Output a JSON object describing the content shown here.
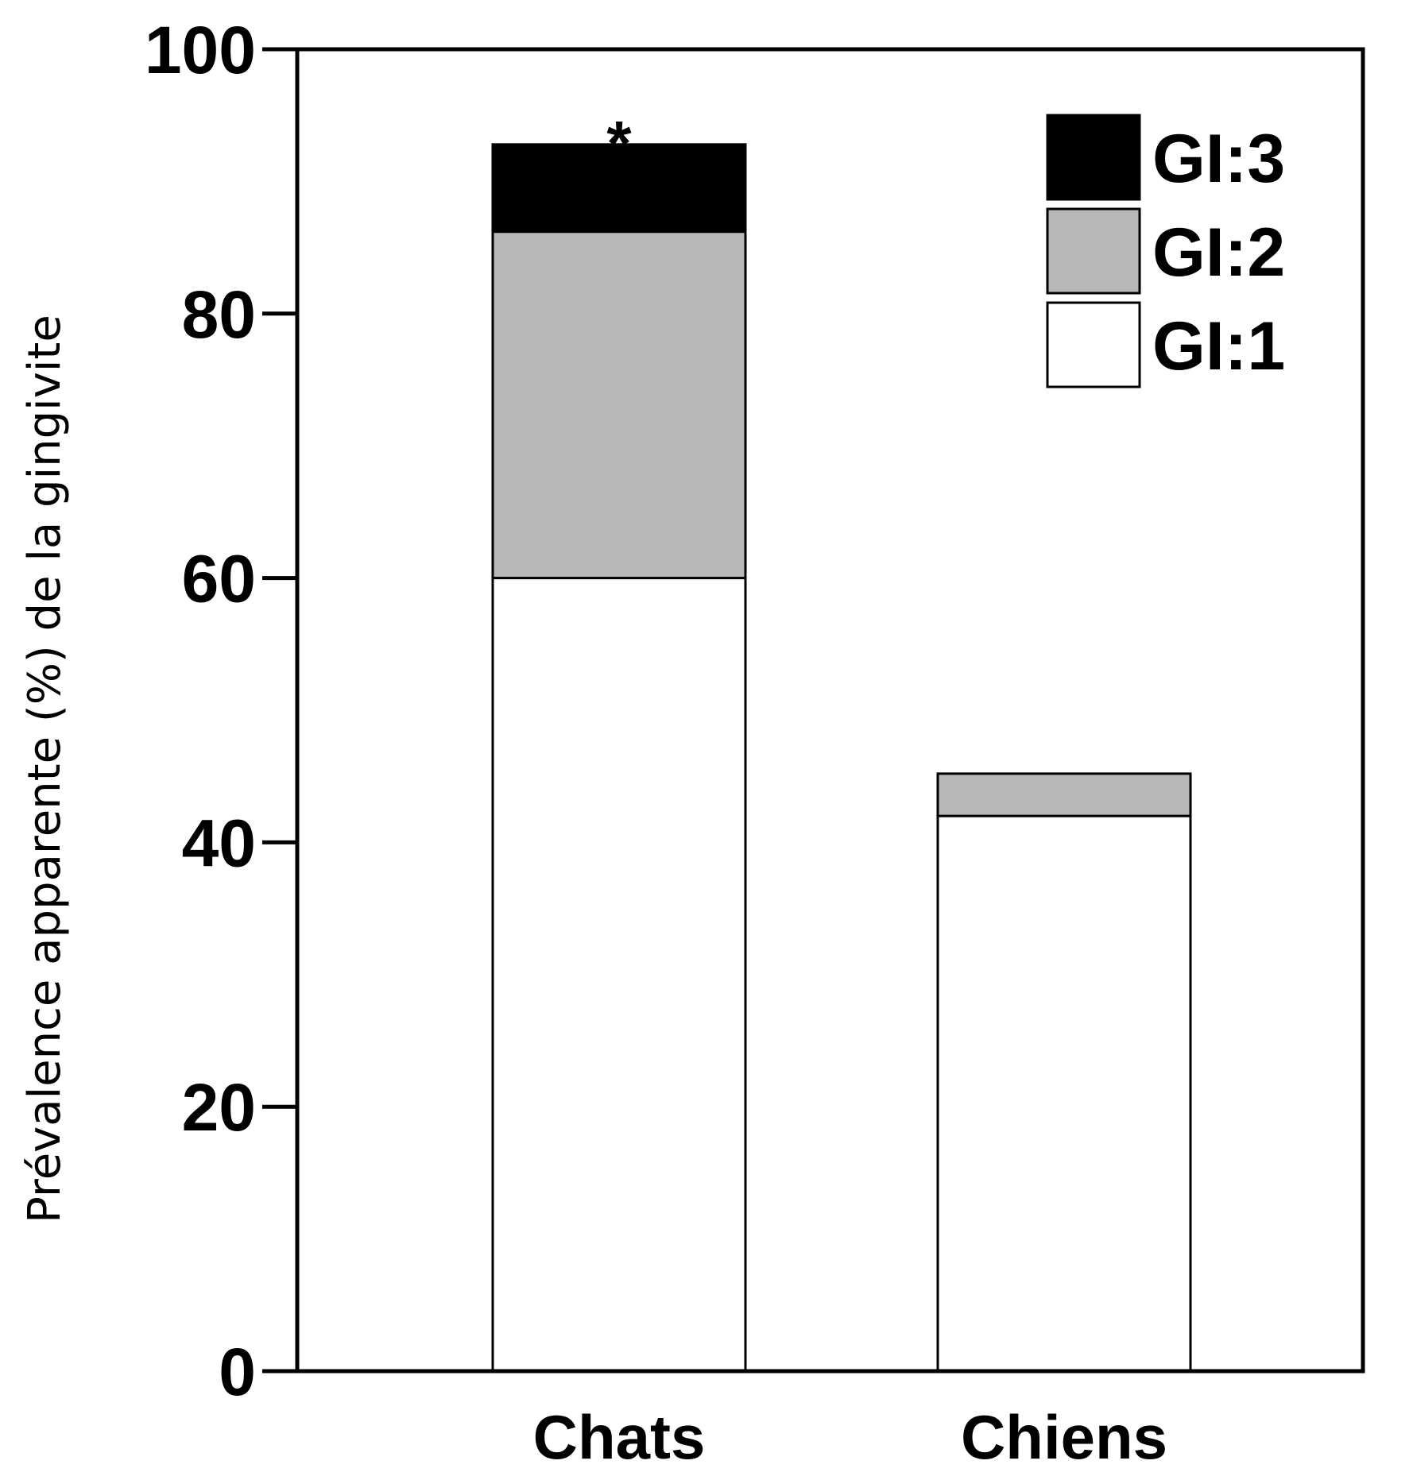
{
  "chart_data": {
    "type": "bar",
    "stacked": true,
    "categories": [
      "Chats",
      "Chiens"
    ],
    "series": [
      {
        "name": "GI:1",
        "color": "#ffffff",
        "values": [
          60,
          42
        ]
      },
      {
        "name": "GI:2",
        "color": "#b8b8b8",
        "values": [
          26.2,
          3.2
        ]
      },
      {
        "name": "GI:3",
        "color": "#000000",
        "values": [
          6.6,
          0
        ]
      }
    ],
    "ylabel": "Prévalence apparente (%) de la gingivite",
    "xlabel": "",
    "ylim": [
      0,
      100
    ],
    "yticks": [
      0,
      20,
      40,
      60,
      80,
      100
    ],
    "annotations": [
      {
        "category": "Chats",
        "text": "*"
      }
    ],
    "legend": {
      "placement": "top-right",
      "order": [
        "GI:3",
        "GI:2",
        "GI:1"
      ]
    },
    "grid": false
  }
}
